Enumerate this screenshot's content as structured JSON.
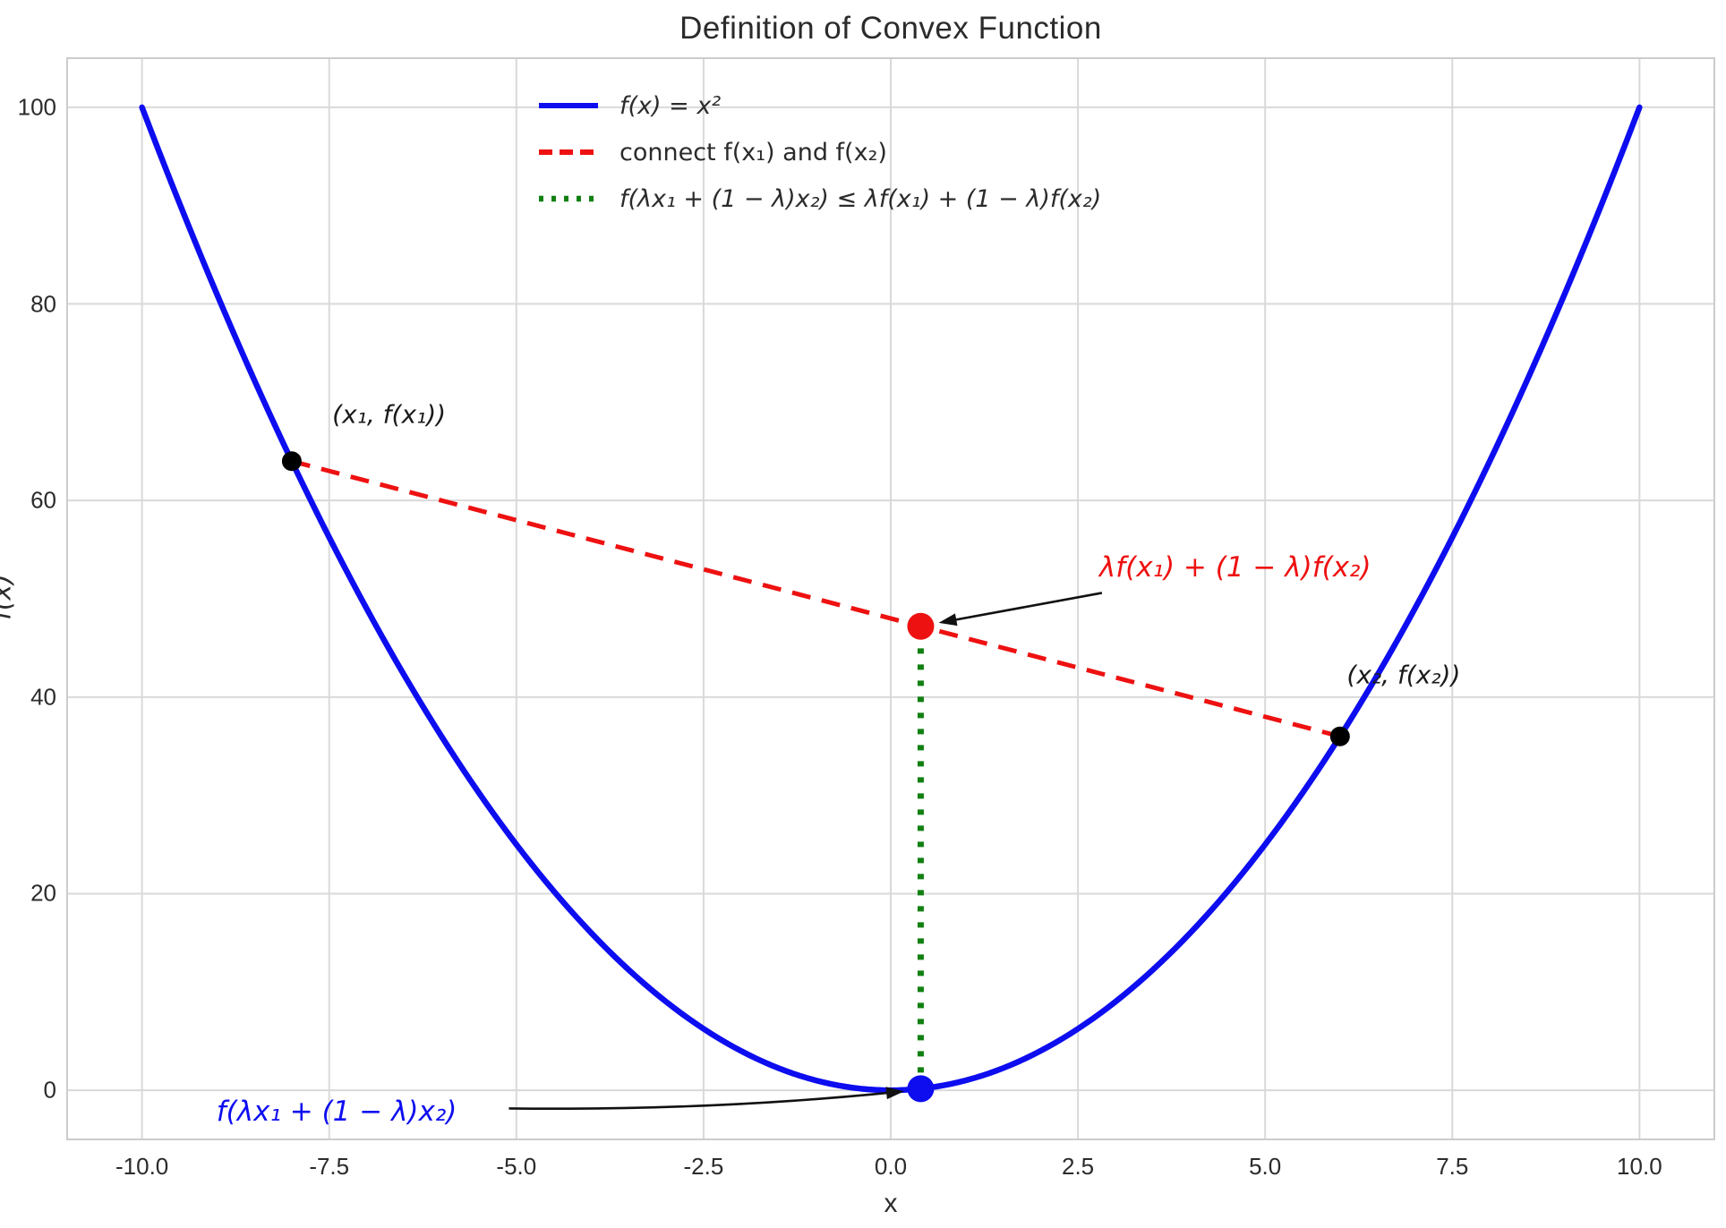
{
  "figure": {
    "background": "#ffffff",
    "grid_color": "#d9d9d9",
    "spine_color": "#cccccc",
    "text_color": "#2b2b2b"
  },
  "chart_data": {
    "type": "line",
    "title": "Definition of Convex Function",
    "xlabel": "x",
    "ylabel": "f(x)",
    "xlim": [
      -11,
      11
    ],
    "ylim": [
      -5,
      105
    ],
    "xticks": [
      {
        "value": -10.0,
        "label": "-10.0"
      },
      {
        "value": -7.5,
        "label": "-7.5"
      },
      {
        "value": -5.0,
        "label": "-5.0"
      },
      {
        "value": -2.5,
        "label": "-2.5"
      },
      {
        "value": 0.0,
        "label": "0.0"
      },
      {
        "value": 2.5,
        "label": "2.5"
      },
      {
        "value": 5.0,
        "label": "5.0"
      },
      {
        "value": 7.5,
        "label": "7.5"
      },
      {
        "value": 10.0,
        "label": "10.0"
      }
    ],
    "yticks": [
      {
        "value": 0,
        "label": "0"
      },
      {
        "value": 20,
        "label": "20"
      },
      {
        "value": 40,
        "label": "40"
      },
      {
        "value": 60,
        "label": "60"
      },
      {
        "value": 80,
        "label": "80"
      },
      {
        "value": 100,
        "label": "100"
      }
    ],
    "grid": true,
    "legend": {
      "position": "upper center-left",
      "frame": false,
      "items": [
        {
          "label": "f(x) = x²",
          "style": "solid",
          "color": "#0d0df0",
          "italic": true
        },
        {
          "label": "connect f(x₁) and f(x₂)",
          "style": "dashed",
          "color": "#ee1111",
          "italic": false
        },
        {
          "label": "f(λx₁ + (1 − λ)x₂) ≤ λf(x₁) + (1 − λ)f(x₂)",
          "style": "dotted",
          "color": "#118011",
          "italic": true
        }
      ]
    },
    "series": [
      {
        "name": "f(x) = x²",
        "kind": "function",
        "expr": "x^2",
        "x_min": -10,
        "x_max": 10,
        "color": "#0d0df0",
        "style": "solid",
        "width": 6.5
      },
      {
        "name": "connect f(x₁) and f(x₂)",
        "kind": "segment",
        "points": [
          [
            -8,
            64
          ],
          [
            6,
            36
          ]
        ],
        "color": "#ee1111",
        "style": "dashed",
        "width": 5
      },
      {
        "name": "f(λx₁ + (1 − λ)x₂) ≤ λf(x₁) + (1 − λ)f(x₂)",
        "kind": "segment",
        "points": [
          [
            0.4,
            0.16
          ],
          [
            0.4,
            47.2
          ]
        ],
        "color": "#118011",
        "style": "dotted",
        "width": 7
      }
    ],
    "markers": [
      {
        "name": "point-x1-fx1",
        "xy": [
          -8,
          64
        ],
        "color": "#000000",
        "r": 11
      },
      {
        "name": "point-x2-fx2",
        "xy": [
          6,
          36
        ],
        "color": "#000000",
        "r": 11
      },
      {
        "name": "point-chord-value",
        "xy": [
          0.4,
          47.2
        ],
        "color": "#ee1111",
        "r": 15
      },
      {
        "name": "point-function-value",
        "xy": [
          0.4,
          0.16
        ],
        "color": "#0d0df0",
        "r": 15
      }
    ],
    "annotations": [
      {
        "name": "label-x1-point",
        "text": "(x₁, f(x₁))",
        "color": "#1a1a1a",
        "xy": [
          -6.7,
          68.8
        ],
        "fontsize": 28,
        "italic": true
      },
      {
        "name": "label-x2-point",
        "text": "(x₂, f(x₂))",
        "color": "#1a1a1a",
        "xy": [
          6.85,
          42.3
        ],
        "fontsize": 28,
        "italic": true
      },
      {
        "name": "label-chord-value",
        "text": "λf(x₁) + (1 − λ)f(x₂)",
        "color": "#ee1111",
        "xy": [
          4.6,
          53.2
        ],
        "fontsize": 31,
        "italic": true,
        "arrow": {
          "from": [
            2.82,
            50.6
          ],
          "to": [
            0.64,
            47.55
          ],
          "bend": 0
        }
      },
      {
        "name": "label-function-value",
        "text": "f(λx₁ + (1 − λ)x₂)",
        "color": "#0d0df0",
        "xy": [
          -7.4,
          -2.2
        ],
        "fontsize": 31,
        "italic": true,
        "arrow": {
          "from": [
            -5.1,
            -1.85
          ],
          "to": [
            0.18,
            -0.1
          ],
          "bend": -0.028
        }
      }
    ]
  }
}
